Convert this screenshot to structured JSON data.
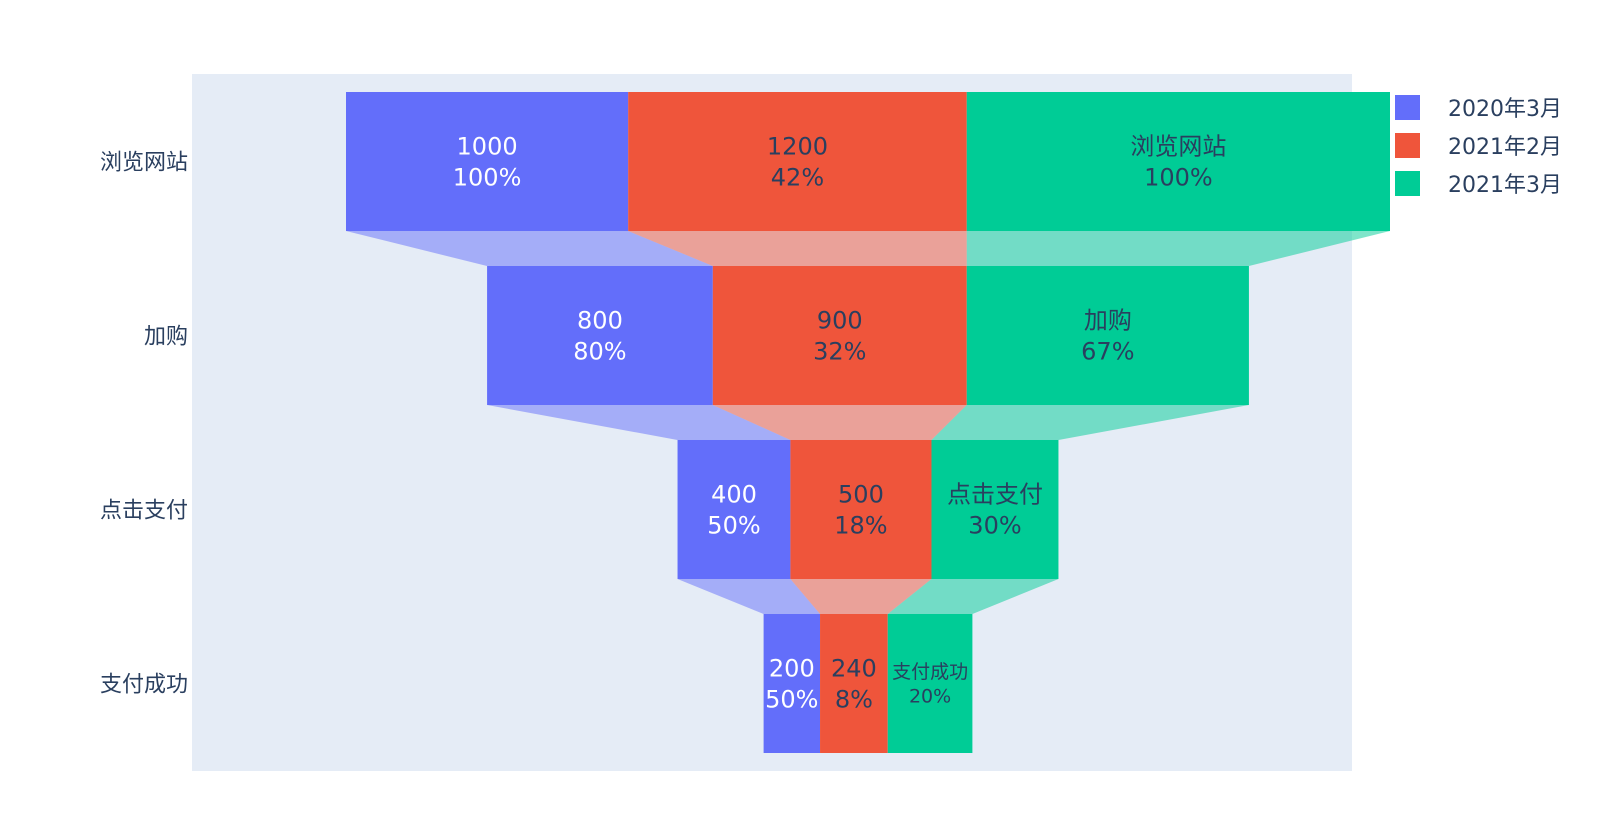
{
  "chart_data": {
    "type": "funnel",
    "stages": [
      "浏览网站",
      "加购",
      "点击支付",
      "支付成功"
    ],
    "series": [
      {
        "name": "2020年3月",
        "color": "#636efa",
        "values": [
          1000,
          800,
          400,
          200
        ],
        "labels": [
          [
            "1000",
            "100%"
          ],
          [
            "800",
            "80%"
          ],
          [
            "400",
            "50%"
          ],
          [
            "200",
            "50%"
          ]
        ],
        "label_color": "#ffffff"
      },
      {
        "name": "2021年2月",
        "color": "#ef553b",
        "values": [
          1200,
          900,
          500,
          240
        ],
        "labels": [
          [
            "1200",
            "42%"
          ],
          [
            "900",
            "32%"
          ],
          [
            "500",
            "18%"
          ],
          [
            "240",
            "8%"
          ]
        ],
        "label_color": "#2a3f5f"
      },
      {
        "name": "2021年3月",
        "color": "#00cc96",
        "values": [
          1500,
          1000,
          450,
          300
        ],
        "labels": [
          [
            "浏览网站",
            "100%"
          ],
          [
            "加购",
            "67%"
          ],
          [
            "点击支付",
            "30%"
          ],
          [
            "支付成功",
            "20%"
          ]
        ],
        "label_color": "#2a3f5f"
      }
    ],
    "legend_position": "top-right",
    "plot_background": "#e5ecf6"
  }
}
